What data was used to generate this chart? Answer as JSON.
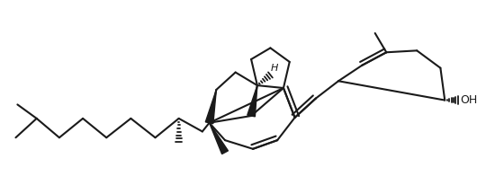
{
  "background": "#ffffff",
  "line_color": "#1a1a1a",
  "lw": 1.5,
  "figsize": [
    5.3,
    1.96
  ],
  "dpi": 100,
  "xlim": [
    0,
    530
  ],
  "ylim": [
    0,
    196
  ]
}
